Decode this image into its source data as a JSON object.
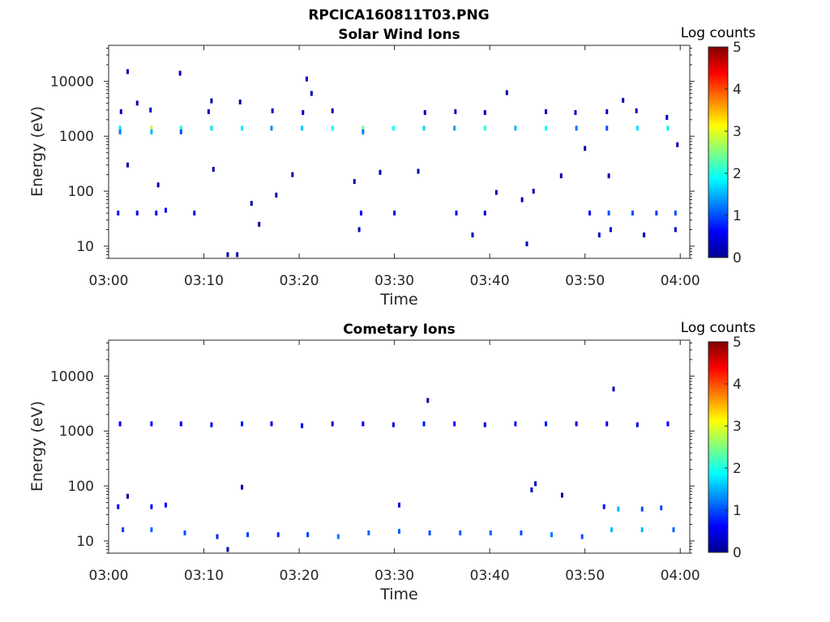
{
  "figure": {
    "title": "RPCICA160811T03.PNG"
  },
  "chart_data": [
    {
      "type": "heatmap",
      "title": "Solar Wind Ions",
      "xlabel": "Time",
      "ylabel": "Energy (eV)",
      "yscale": "log",
      "ylim": [
        6,
        45000
      ],
      "xlim": [
        "03:00",
        "04:01"
      ],
      "xticks": [
        "03:00",
        "03:10",
        "03:20",
        "03:30",
        "03:40",
        "03:50",
        "04:00"
      ],
      "yticks": [
        "10",
        "100",
        "1000",
        "10000"
      ],
      "colorbar": {
        "label": "Log counts",
        "min": 0,
        "max": 5,
        "ticks": [
          "0",
          "1",
          "2",
          "3",
          "4",
          "5"
        ],
        "colormap": "jet"
      },
      "grid": false,
      "note_units": "x in minutes after 03:00, y in eV, v in log counts",
      "points": [
        {
          "x": 1.2,
          "y": 1400,
          "v": 1.8
        },
        {
          "x": 1.2,
          "y": 1200,
          "v": 1.2
        },
        {
          "x": 4.5,
          "y": 1400,
          "v": 2.8
        },
        {
          "x": 4.5,
          "y": 1200,
          "v": 1.5
        },
        {
          "x": 7.6,
          "y": 1400,
          "v": 2.0
        },
        {
          "x": 7.6,
          "y": 1200,
          "v": 1.0
        },
        {
          "x": 10.8,
          "y": 1400,
          "v": 1.7
        },
        {
          "x": 14,
          "y": 1400,
          "v": 1.8
        },
        {
          "x": 17.1,
          "y": 1400,
          "v": 1.3
        },
        {
          "x": 20.3,
          "y": 1400,
          "v": 1.6
        },
        {
          "x": 23.5,
          "y": 1400,
          "v": 1.9
        },
        {
          "x": 26.7,
          "y": 1400,
          "v": 2.4
        },
        {
          "x": 26.7,
          "y": 1200,
          "v": 1.2
        },
        {
          "x": 29.9,
          "y": 1400,
          "v": 1.9
        },
        {
          "x": 33.1,
          "y": 1400,
          "v": 1.7
        },
        {
          "x": 36.3,
          "y": 1400,
          "v": 1.4
        },
        {
          "x": 39.5,
          "y": 1400,
          "v": 2.0
        },
        {
          "x": 42.7,
          "y": 1400,
          "v": 1.5
        },
        {
          "x": 45.9,
          "y": 1400,
          "v": 1.9
        },
        {
          "x": 49.1,
          "y": 1400,
          "v": 1.2
        },
        {
          "x": 52.3,
          "y": 1400,
          "v": 1.0
        },
        {
          "x": 55.5,
          "y": 1400,
          "v": 1.7
        },
        {
          "x": 58.7,
          "y": 1400,
          "v": 1.8
        },
        {
          "x": 1.3,
          "y": 2800,
          "v": 0.3
        },
        {
          "x": 4.4,
          "y": 3000,
          "v": 0.4
        },
        {
          "x": 10.5,
          "y": 2800,
          "v": 0.3
        },
        {
          "x": 17.2,
          "y": 2900,
          "v": 0.4
        },
        {
          "x": 20.4,
          "y": 2700,
          "v": 0.3
        },
        {
          "x": 23.5,
          "y": 2900,
          "v": 0.3
        },
        {
          "x": 33.2,
          "y": 2700,
          "v": 0.3
        },
        {
          "x": 36.4,
          "y": 2800,
          "v": 0.3
        },
        {
          "x": 39.5,
          "y": 2700,
          "v": 0.3
        },
        {
          "x": 45.9,
          "y": 2800,
          "v": 0.3
        },
        {
          "x": 49.0,
          "y": 2700,
          "v": 0.4
        },
        {
          "x": 52.3,
          "y": 2800,
          "v": 0.3
        },
        {
          "x": 55.4,
          "y": 2900,
          "v": 0.3
        },
        {
          "x": 58.6,
          "y": 2200,
          "v": 0.3
        },
        {
          "x": 2.0,
          "y": 15000,
          "v": 0.3
        },
        {
          "x": 7.5,
          "y": 14000,
          "v": 0.3
        },
        {
          "x": 20.8,
          "y": 11000,
          "v": 0.3
        },
        {
          "x": 41.8,
          "y": 6200,
          "v": 0.2
        },
        {
          "x": 54.0,
          "y": 4500,
          "v": 0.2
        },
        {
          "x": 13.8,
          "y": 4200,
          "v": 0.2
        },
        {
          "x": 10.8,
          "y": 4400,
          "v": 0.2
        },
        {
          "x": 3.0,
          "y": 4000,
          "v": 0.2
        },
        {
          "x": 21.3,
          "y": 6000,
          "v": 0.2
        },
        {
          "x": 2.0,
          "y": 300,
          "v": 0.2
        },
        {
          "x": 5.2,
          "y": 130,
          "v": 0.2
        },
        {
          "x": 11.0,
          "y": 250,
          "v": 0.2
        },
        {
          "x": 15.0,
          "y": 60,
          "v": 0.2
        },
        {
          "x": 15.8,
          "y": 25,
          "v": 0.2
        },
        {
          "x": 17.6,
          "y": 85,
          "v": 0.2
        },
        {
          "x": 19.3,
          "y": 200,
          "v": 0.2
        },
        {
          "x": 25.8,
          "y": 150,
          "v": 0.2
        },
        {
          "x": 28.5,
          "y": 220,
          "v": 0.2
        },
        {
          "x": 32.5,
          "y": 230,
          "v": 0.2
        },
        {
          "x": 40.7,
          "y": 95,
          "v": 0.2
        },
        {
          "x": 43.4,
          "y": 70,
          "v": 0.2
        },
        {
          "x": 44.6,
          "y": 100,
          "v": 0.2
        },
        {
          "x": 47.5,
          "y": 190,
          "v": 0.2
        },
        {
          "x": 50.0,
          "y": 600,
          "v": 0.2
        },
        {
          "x": 52.5,
          "y": 190,
          "v": 0.2
        },
        {
          "x": 59.7,
          "y": 700,
          "v": 0.2
        },
        {
          "x": 1.0,
          "y": 40,
          "v": 0.7
        },
        {
          "x": 3.0,
          "y": 40,
          "v": 0.5
        },
        {
          "x": 5.0,
          "y": 40,
          "v": 0.6
        },
        {
          "x": 6.0,
          "y": 45,
          "v": 0.6
        },
        {
          "x": 9.0,
          "y": 40,
          "v": 0.5
        },
        {
          "x": 26.5,
          "y": 40,
          "v": 0.6
        },
        {
          "x": 30.0,
          "y": 40,
          "v": 0.5
        },
        {
          "x": 36.5,
          "y": 40,
          "v": 0.6
        },
        {
          "x": 39.5,
          "y": 40,
          "v": 0.5
        },
        {
          "x": 50.5,
          "y": 40,
          "v": 0.5
        },
        {
          "x": 52.5,
          "y": 40,
          "v": 1.0
        },
        {
          "x": 55.0,
          "y": 40,
          "v": 1.0
        },
        {
          "x": 57.5,
          "y": 40,
          "v": 0.9
        },
        {
          "x": 59.5,
          "y": 40,
          "v": 1.0
        },
        {
          "x": 26.3,
          "y": 20,
          "v": 0.3
        },
        {
          "x": 38.2,
          "y": 16,
          "v": 0.3
        },
        {
          "x": 43.9,
          "y": 11,
          "v": 0.3
        },
        {
          "x": 51.5,
          "y": 16,
          "v": 0.3
        },
        {
          "x": 52.7,
          "y": 20,
          "v": 0.4
        },
        {
          "x": 56.2,
          "y": 16,
          "v": 0.3
        },
        {
          "x": 59.5,
          "y": 20,
          "v": 0.3
        },
        {
          "x": 12.5,
          "y": 7,
          "v": 0.2
        },
        {
          "x": 13.5,
          "y": 7,
          "v": 0.2
        }
      ]
    },
    {
      "type": "heatmap",
      "title": "Cometary Ions",
      "xlabel": "Time",
      "ylabel": "Energy (eV)",
      "yscale": "log",
      "ylim": [
        6,
        45000
      ],
      "xlim": [
        "03:00",
        "04:01"
      ],
      "xticks": [
        "03:00",
        "03:10",
        "03:20",
        "03:30",
        "03:40",
        "03:50",
        "04:00"
      ],
      "yticks": [
        "10",
        "100",
        "1000",
        "10000"
      ],
      "colorbar": {
        "label": "Log counts",
        "min": 0,
        "max": 5,
        "ticks": [
          "0",
          "1",
          "2",
          "3",
          "4",
          "5"
        ],
        "colormap": "jet"
      },
      "grid": false,
      "points": [
        {
          "x": 1.2,
          "y": 1350,
          "v": 0.6
        },
        {
          "x": 4.5,
          "y": 1350,
          "v": 0.6
        },
        {
          "x": 7.6,
          "y": 1350,
          "v": 0.6
        },
        {
          "x": 10.8,
          "y": 1300,
          "v": 0.5
        },
        {
          "x": 14,
          "y": 1350,
          "v": 0.7
        },
        {
          "x": 17.1,
          "y": 1350,
          "v": 0.5
        },
        {
          "x": 20.3,
          "y": 1250,
          "v": 0.5
        },
        {
          "x": 23.5,
          "y": 1350,
          "v": 0.5
        },
        {
          "x": 26.7,
          "y": 1350,
          "v": 0.6
        },
        {
          "x": 29.9,
          "y": 1300,
          "v": 0.5
        },
        {
          "x": 33.1,
          "y": 1350,
          "v": 0.7
        },
        {
          "x": 36.3,
          "y": 1350,
          "v": 0.6
        },
        {
          "x": 39.5,
          "y": 1300,
          "v": 0.5
        },
        {
          "x": 42.7,
          "y": 1350,
          "v": 0.6
        },
        {
          "x": 45.9,
          "y": 1350,
          "v": 0.7
        },
        {
          "x": 49.1,
          "y": 1350,
          "v": 0.5
        },
        {
          "x": 52.3,
          "y": 1350,
          "v": 0.5
        },
        {
          "x": 55.5,
          "y": 1300,
          "v": 0.5
        },
        {
          "x": 58.7,
          "y": 1350,
          "v": 0.6
        },
        {
          "x": 33.5,
          "y": 3600,
          "v": 0.2
        },
        {
          "x": 53.0,
          "y": 5800,
          "v": 0.2
        },
        {
          "x": 14.0,
          "y": 95,
          "v": 0.2
        },
        {
          "x": 2.0,
          "y": 65,
          "v": 0.2
        },
        {
          "x": 44.8,
          "y": 110,
          "v": 0.2
        },
        {
          "x": 47.6,
          "y": 68,
          "v": 0.2
        },
        {
          "x": 44.4,
          "y": 85,
          "v": 0.3
        },
        {
          "x": 1.0,
          "y": 42,
          "v": 0.6
        },
        {
          "x": 4.5,
          "y": 42,
          "v": 0.6
        },
        {
          "x": 6.0,
          "y": 45,
          "v": 0.6
        },
        {
          "x": 30.5,
          "y": 45,
          "v": 0.5
        },
        {
          "x": 52.0,
          "y": 42,
          "v": 0.7
        },
        {
          "x": 53.5,
          "y": 38,
          "v": 1.5
        },
        {
          "x": 56.0,
          "y": 38,
          "v": 1.0
        },
        {
          "x": 58.0,
          "y": 40,
          "v": 1.0
        },
        {
          "x": 1.5,
          "y": 16,
          "v": 0.9
        },
        {
          "x": 4.5,
          "y": 16,
          "v": 1.1
        },
        {
          "x": 8.0,
          "y": 14,
          "v": 1.0
        },
        {
          "x": 11.4,
          "y": 12,
          "v": 0.8
        },
        {
          "x": 14.6,
          "y": 13,
          "v": 0.9
        },
        {
          "x": 17.8,
          "y": 13,
          "v": 0.8
        },
        {
          "x": 20.9,
          "y": 13,
          "v": 0.9
        },
        {
          "x": 24.1,
          "y": 12,
          "v": 1.2
        },
        {
          "x": 27.3,
          "y": 14,
          "v": 1.1
        },
        {
          "x": 30.5,
          "y": 15,
          "v": 1.1
        },
        {
          "x": 33.7,
          "y": 14,
          "v": 1.0
        },
        {
          "x": 36.9,
          "y": 14,
          "v": 1.1
        },
        {
          "x": 40.1,
          "y": 14,
          "v": 1.1
        },
        {
          "x": 43.3,
          "y": 14,
          "v": 1.0
        },
        {
          "x": 46.5,
          "y": 13,
          "v": 1.2
        },
        {
          "x": 49.7,
          "y": 12,
          "v": 1.0
        },
        {
          "x": 52.8,
          "y": 16,
          "v": 1.5
        },
        {
          "x": 56.0,
          "y": 16,
          "v": 1.5
        },
        {
          "x": 59.3,
          "y": 16,
          "v": 1.1
        },
        {
          "x": 12.5,
          "y": 7,
          "v": 0.2
        }
      ]
    }
  ]
}
